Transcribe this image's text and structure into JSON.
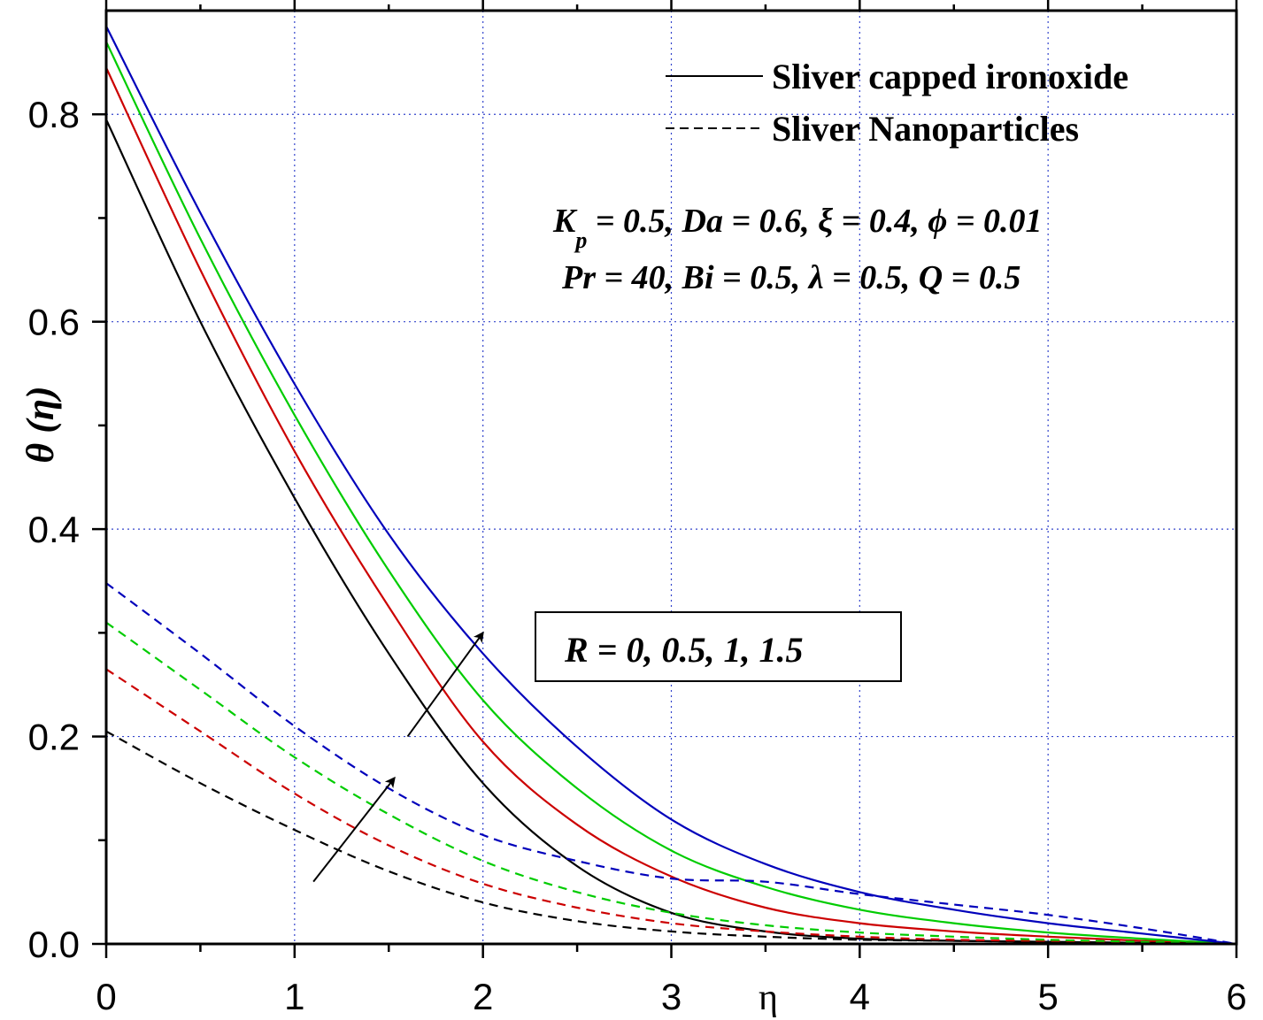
{
  "chart_data": {
    "type": "line",
    "title": "",
    "xlabel": "η",
    "ylabel": "θ (η)",
    "xlim": [
      0,
      6
    ],
    "ylim": [
      0,
      0.9
    ],
    "grid": true,
    "x_ticks": [
      "0",
      "1",
      "2",
      "3",
      "4",
      "5",
      "6"
    ],
    "y_ticks": [
      "0.0",
      "0.2",
      "0.4",
      "0.6",
      "0.8"
    ],
    "x_tick_values": [
      0,
      1,
      2,
      3,
      4,
      5,
      6
    ],
    "y_tick_values": [
      0,
      0.2,
      0.4,
      0.6,
      0.8
    ],
    "x": [
      0,
      0.5,
      1,
      1.5,
      2,
      2.5,
      3,
      3.5,
      4,
      4.5,
      5,
      5.5,
      6
    ],
    "legend": [
      {
        "label": "Sliver capped ironoxide",
        "style": "solid"
      },
      {
        "label": "Sliver Nanoparticles",
        "style": "dashed"
      }
    ],
    "series": [
      {
        "name": "Sliver capped ironoxide, R = 0",
        "color": "#000000",
        "style": "solid",
        "values": [
          0.795,
          0.6,
          0.43,
          0.28,
          0.155,
          0.075,
          0.03,
          0.012,
          0.005,
          0.003,
          0.002,
          0.001,
          0.0
        ]
      },
      {
        "name": "Sliver capped ironoxide, R = 0.5",
        "color": "#cc0000",
        "style": "solid",
        "values": [
          0.845,
          0.65,
          0.475,
          0.325,
          0.195,
          0.115,
          0.065,
          0.035,
          0.02,
          0.012,
          0.007,
          0.003,
          0.0
        ]
      },
      {
        "name": "Sliver capped ironoxide, R = 1",
        "color": "#00cc00",
        "style": "solid",
        "values": [
          0.87,
          0.68,
          0.51,
          0.36,
          0.235,
          0.15,
          0.09,
          0.055,
          0.033,
          0.02,
          0.011,
          0.005,
          0.0
        ]
      },
      {
        "name": "Sliver capped ironoxide, R = 1.5",
        "color": "#0000bb",
        "style": "solid",
        "values": [
          0.885,
          0.705,
          0.54,
          0.395,
          0.28,
          0.19,
          0.12,
          0.077,
          0.05,
          0.033,
          0.02,
          0.01,
          0.0
        ]
      },
      {
        "name": "Sliver Nanoparticles, R = 0",
        "color": "#000000",
        "style": "dashed",
        "values": [
          0.205,
          0.155,
          0.11,
          0.07,
          0.04,
          0.022,
          0.012,
          0.007,
          0.004,
          0.003,
          0.002,
          0.001,
          0.0
        ]
      },
      {
        "name": "Sliver Nanoparticles, R = 0.5",
        "color": "#cc0000",
        "style": "dashed",
        "values": [
          0.265,
          0.205,
          0.145,
          0.095,
          0.058,
          0.035,
          0.02,
          0.012,
          0.007,
          0.004,
          0.003,
          0.002,
          0.0
        ]
      },
      {
        "name": "Sliver Nanoparticles, R = 1",
        "color": "#00cc00",
        "style": "dashed",
        "values": [
          0.31,
          0.245,
          0.18,
          0.125,
          0.08,
          0.05,
          0.03,
          0.018,
          0.011,
          0.007,
          0.004,
          0.002,
          0.0
        ]
      },
      {
        "name": "Sliver Nanoparticles, R = 1.5",
        "color": "#0000bb",
        "style": "dashed",
        "values": [
          0.348,
          0.28,
          0.21,
          0.15,
          0.105,
          0.08,
          0.063,
          0.06,
          0.048,
          0.038,
          0.028,
          0.015,
          0.0
        ]
      }
    ],
    "annotations": {
      "params_line1_parts": [
        "K",
        "p",
        " = 0.5, Da = 0.6, ξ = 0.4, ϕ = 0.01"
      ],
      "params_line2": "Pr = 40, Bi = 0.5, λ = 0.5, Q = 0.5",
      "r_label": "R = 0, 0.5, 1, 1.5"
    },
    "arrows": [
      {
        "from": [
          1.6,
          0.2
        ],
        "to": [
          2.0,
          0.3
        ]
      },
      {
        "from": [
          1.1,
          0.06
        ],
        "to": [
          1.53,
          0.16
        ]
      }
    ]
  }
}
